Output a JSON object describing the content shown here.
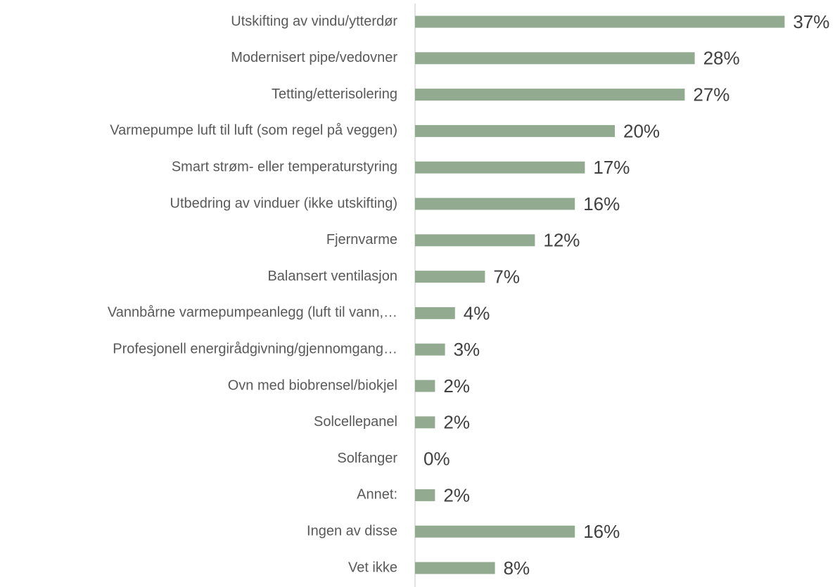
{
  "chart_data": {
    "type": "barh",
    "categories": [
      "Utskifting av vindu/ytterdør",
      "Modernisert pipe/vedovner",
      "Tetting/etterisolering",
      "Varmepumpe luft til luft (som regel på veggen)",
      "Smart strøm- eller temperaturstyring",
      "Utbedring av vinduer (ikke utskifting)",
      "Fjernvarme",
      "Balansert ventilasjon",
      "Vannbårne varmepumpeanlegg (luft til vann,…",
      "Profesjonell energirådgivning/gjennomgang…",
      "Ovn med biobrensel/biokjel",
      "Solcellepanel",
      "Solfanger",
      "Annet:",
      "Ingen av disse",
      "Vet ikke"
    ],
    "values": [
      37,
      28,
      27,
      20,
      17,
      16,
      12,
      7,
      4,
      3,
      2,
      2,
      0,
      2,
      16,
      8
    ],
    "value_labels": [
      "37%",
      "28%",
      "27%",
      "20%",
      "17%",
      "16%",
      "12%",
      "7%",
      "4%",
      "3%",
      "2%",
      "2%",
      "0%",
      "2%",
      "16%",
      "8%"
    ],
    "color": "#92ab90",
    "xlim": [
      0,
      40
    ]
  }
}
